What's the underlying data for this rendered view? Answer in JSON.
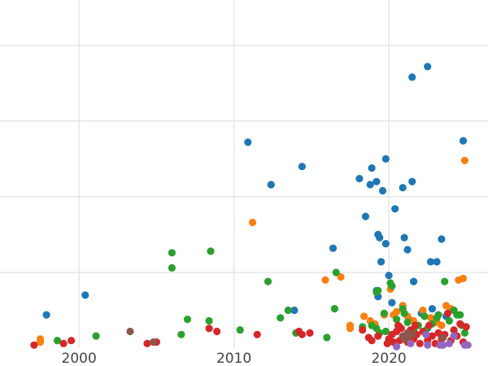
{
  "chart_data": {
    "type": "scatter",
    "title": "",
    "xlabel": "",
    "ylabel": "",
    "xlim": [
      1994.9,
      2026.4
    ],
    "ylim": [
      0,
      23
    ],
    "grid": true,
    "legend": "none",
    "x_ticks": [
      {
        "value": 2000,
        "label": "2000"
      },
      {
        "value": 2010,
        "label": "2010"
      },
      {
        "value": 2020,
        "label": "2020"
      }
    ],
    "y_gridlines": [
      5,
      10,
      15,
      20
    ],
    "series": [
      {
        "color": "#1f77b4",
        "points": [
          [
            1997.9,
            2.2
          ],
          [
            2000.4,
            3.5
          ],
          [
            2010.9,
            13.6
          ],
          [
            2012.4,
            10.8
          ],
          [
            2014.4,
            12.0
          ],
          [
            2013.9,
            2.5
          ],
          [
            2016.4,
            6.6
          ],
          [
            2018.1,
            11.2
          ],
          [
            2018.5,
            8.7
          ],
          [
            2018.8,
            10.8
          ],
          [
            2018.9,
            11.9
          ],
          [
            2019.2,
            11.0
          ],
          [
            2019.3,
            7.5
          ],
          [
            2019.4,
            7.3
          ],
          [
            2019.5,
            5.7
          ],
          [
            2019.6,
            10.4
          ],
          [
            2019.8,
            6.9
          ],
          [
            2019.3,
            3.4
          ],
          [
            2019.2,
            3.8
          ],
          [
            2019.8,
            12.5
          ],
          [
            2020.0,
            4.8
          ],
          [
            2020.2,
            3.0
          ],
          [
            2020.4,
            9.2
          ],
          [
            2020.9,
            10.6
          ],
          [
            2021.0,
            7.3
          ],
          [
            2021.2,
            6.5
          ],
          [
            2021.5,
            11.0
          ],
          [
            2021.6,
            4.4
          ],
          [
            2021.5,
            17.9
          ],
          [
            2022.5,
            18.6
          ],
          [
            2022.7,
            5.7
          ],
          [
            2023.1,
            5.7
          ],
          [
            2023.4,
            7.2
          ],
          [
            2024.8,
            13.7
          ],
          [
            2022.8,
            2.6
          ],
          [
            2023.7,
            2.1
          ],
          [
            2020.9,
            2.8
          ],
          [
            2021.3,
            1.9
          ],
          [
            2022.1,
            2.3
          ]
        ]
      },
      {
        "color": "#ff7f0e",
        "points": [
          [
            1997.5,
            0.6
          ],
          [
            1997.5,
            0.4
          ],
          [
            2011.2,
            8.3
          ],
          [
            2015.9,
            4.5
          ],
          [
            2016.9,
            4.7
          ],
          [
            2017.5,
            1.5
          ],
          [
            2017.5,
            1.3
          ],
          [
            2018.4,
            2.1
          ],
          [
            2018.8,
            1.8
          ],
          [
            2019.1,
            1.6
          ],
          [
            2019.7,
            2.2
          ],
          [
            2020.1,
            3.9
          ],
          [
            2020.5,
            2.4
          ],
          [
            2020.9,
            2.8
          ],
          [
            2021.2,
            2.1
          ],
          [
            2021.6,
            1.8
          ],
          [
            2022.2,
            2.5
          ],
          [
            2022.7,
            2.0
          ],
          [
            2023.1,
            1.7
          ],
          [
            2023.7,
            2.8
          ],
          [
            2024.0,
            2.6
          ],
          [
            2024.5,
            4.5
          ],
          [
            2024.8,
            4.6
          ],
          [
            2024.9,
            12.4
          ],
          [
            2020.3,
            2.2
          ],
          [
            2023.4,
            1.5
          ]
        ]
      },
      {
        "color": "#2ca02c",
        "points": [
          [
            1998.6,
            0.5
          ],
          [
            2001.1,
            0.8
          ],
          [
            2006.0,
            6.3
          ],
          [
            2006.0,
            5.3
          ],
          [
            2006.6,
            0.9
          ],
          [
            2007.0,
            1.9
          ],
          [
            2008.5,
            6.4
          ],
          [
            2008.4,
            1.8
          ],
          [
            2010.4,
            1.2
          ],
          [
            2012.2,
            4.4
          ],
          [
            2013.0,
            2.0
          ],
          [
            2013.5,
            2.5
          ],
          [
            2014.0,
            1.0
          ],
          [
            2016.0,
            0.7
          ],
          [
            2016.5,
            2.6
          ],
          [
            2016.6,
            5.0
          ],
          [
            2018.3,
            1.4
          ],
          [
            2018.9,
            1.5
          ],
          [
            2019.2,
            1.3
          ],
          [
            2019.4,
            1.0
          ],
          [
            2019.2,
            3.7
          ],
          [
            2019.3,
            3.8
          ],
          [
            2019.7,
            2.3
          ],
          [
            2019.8,
            1.1
          ],
          [
            2020.1,
            4.3
          ],
          [
            2020.2,
            4.1
          ],
          [
            2020.5,
            1.9
          ],
          [
            2020.7,
            1.4
          ],
          [
            2020.9,
            2.6
          ],
          [
            2021.0,
            2.3
          ],
          [
            2021.2,
            1.7
          ],
          [
            2021.6,
            1.2
          ],
          [
            2021.9,
            1.5
          ],
          [
            2022.3,
            2.1
          ],
          [
            2022.5,
            1.3
          ],
          [
            2022.8,
            1.6
          ],
          [
            2023.1,
            2.0
          ],
          [
            2023.2,
            2.2
          ],
          [
            2023.6,
            4.4
          ],
          [
            2023.9,
            1.8
          ],
          [
            2024.2,
            2.5
          ],
          [
            2024.4,
            2.2
          ],
          [
            2024.7,
            1.5
          ],
          [
            2024.9,
            1.0
          ],
          [
            2024.6,
            2.2
          ]
        ]
      },
      {
        "color": "#d62728",
        "points": [
          [
            1997.1,
            0.2
          ],
          [
            1999.0,
            0.3
          ],
          [
            1999.5,
            0.5
          ],
          [
            2004.4,
            0.3
          ],
          [
            2005.0,
            0.4
          ],
          [
            2008.4,
            1.3
          ],
          [
            2008.9,
            1.1
          ],
          [
            2011.5,
            0.9
          ],
          [
            2014.2,
            1.1
          ],
          [
            2014.4,
            0.9
          ],
          [
            2014.9,
            1.0
          ],
          [
            2018.3,
            1.2
          ],
          [
            2018.7,
            0.7
          ],
          [
            2018.9,
            0.5
          ],
          [
            2019.3,
            0.8
          ],
          [
            2019.9,
            0.3
          ],
          [
            2020.0,
            0.6
          ],
          [
            2020.2,
            0.9
          ],
          [
            2020.3,
            0.4
          ],
          [
            2020.5,
            1.1
          ],
          [
            2020.7,
            0.5
          ],
          [
            2020.8,
            1.3
          ],
          [
            2021.0,
            0.8
          ],
          [
            2021.2,
            0.4
          ],
          [
            2021.4,
            1.2
          ],
          [
            2021.6,
            0.6
          ],
          [
            2021.8,
            0.9
          ],
          [
            2022.0,
            0.3
          ],
          [
            2022.2,
            1.1
          ],
          [
            2022.5,
            0.5
          ],
          [
            2022.8,
            0.8
          ],
          [
            2023.0,
            0.3
          ],
          [
            2023.2,
            1.0
          ],
          [
            2023.4,
            0.6
          ],
          [
            2023.6,
            0.9
          ],
          [
            2023.8,
            2.3
          ],
          [
            2024.0,
            0.5
          ],
          [
            2024.2,
            1.2
          ],
          [
            2024.4,
            0.8
          ],
          [
            2024.6,
            1.6
          ],
          [
            2024.8,
            0.4
          ],
          [
            2025.0,
            1.4
          ],
          [
            2022.6,
            1.5
          ],
          [
            2021.7,
            1.5
          ],
          [
            2020.6,
            1.5
          ]
        ]
      },
      {
        "color": "#9467bd",
        "points": [
          [
            2020.5,
            0.1
          ],
          [
            2021.4,
            0.3
          ],
          [
            2022.4,
            0.9
          ],
          [
            2022.5,
            0.2
          ],
          [
            2023.3,
            0.2
          ],
          [
            2023.5,
            0.2
          ],
          [
            2023.9,
            0.3
          ],
          [
            2024.2,
            0.8
          ],
          [
            2024.9,
            0.2
          ],
          [
            2025.1,
            0.2
          ]
        ]
      },
      {
        "color": "#8c564b",
        "points": [
          [
            2003.3,
            1.1
          ],
          [
            2004.8,
            0.4
          ],
          [
            2021.0,
            0.6
          ],
          [
            2021.3,
            0.8
          ],
          [
            2021.5,
            0.9
          ],
          [
            2021.2,
            1.0
          ],
          [
            2023.5,
            0.7
          ],
          [
            2020.9,
            0.8
          ]
        ]
      }
    ]
  }
}
